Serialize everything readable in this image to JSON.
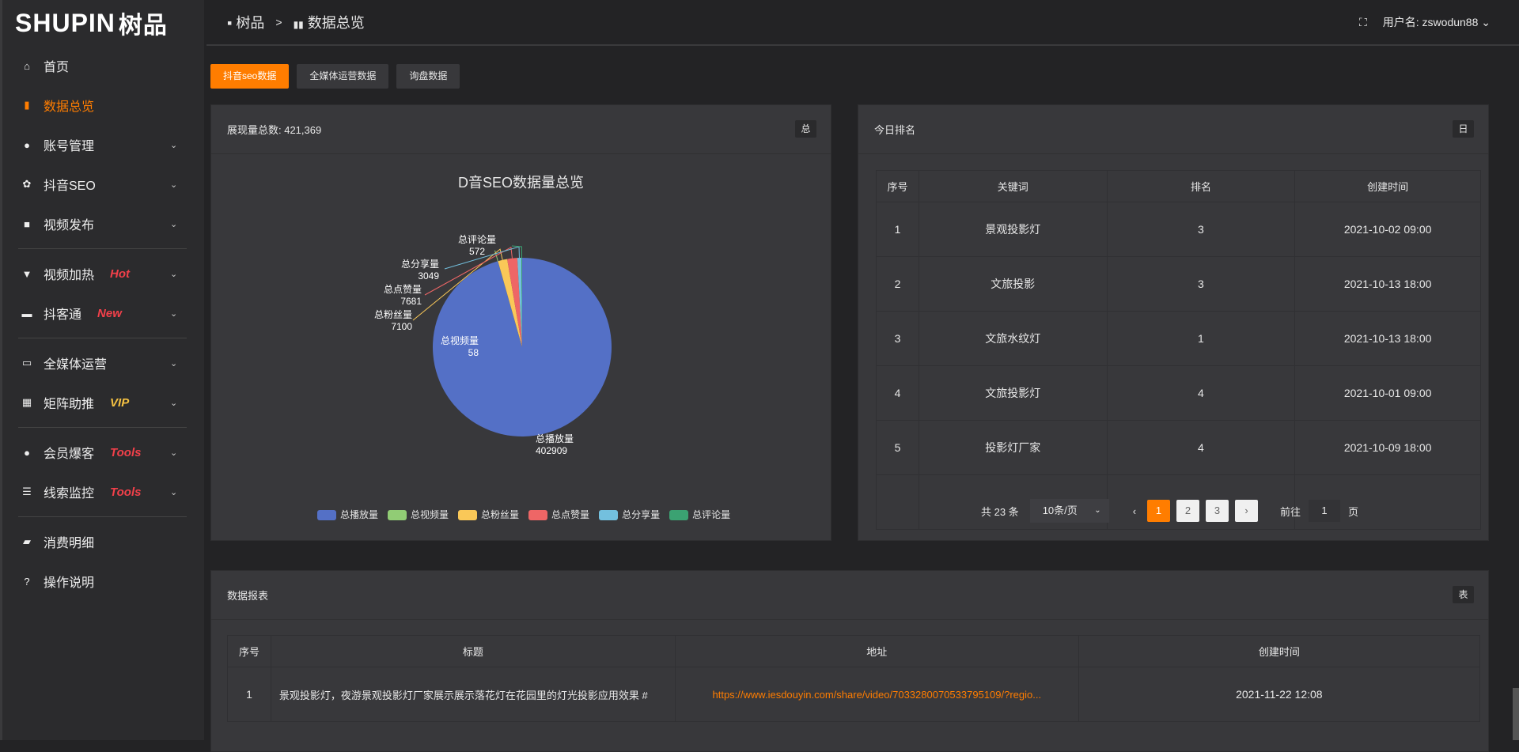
{
  "logo": {
    "text": "SHUPIN",
    "cn": "树品"
  },
  "sidebar": {
    "items": [
      {
        "icon": "home-icon",
        "label": "首页",
        "active": false,
        "chev": false
      },
      {
        "icon": "bar-chart-icon",
        "label": "数据总览",
        "active": true,
        "chev": false
      },
      {
        "icon": "user-icon",
        "label": "账号管理",
        "chev": true
      },
      {
        "icon": "gear-icon",
        "label": "抖音SEO",
        "chev": true
      },
      {
        "icon": "camera-icon",
        "label": "视频发布",
        "chev": true
      },
      {
        "icon": "flag-icon",
        "label": "视频加热",
        "tag": "Hot",
        "tagColor": "#f2404a",
        "chev": true
      },
      {
        "icon": "chat-icon",
        "label": "抖客通",
        "tag": "New",
        "tagColor": "#f2404a",
        "chev": true
      },
      {
        "icon": "monitor-icon",
        "label": "全媒体运营",
        "chev": true
      },
      {
        "icon": "grid-icon",
        "label": "矩阵助推",
        "tag": "VIP",
        "tagColor": "#f5c242",
        "chev": true
      },
      {
        "icon": "user-icon",
        "label": "会员爆客",
        "tag": "Tools",
        "tagColor": "#f2404a",
        "chev": true
      },
      {
        "icon": "sliders-icon",
        "label": "线索监控",
        "tag": "Tools",
        "tagColor": "#f2404a",
        "chev": true
      },
      {
        "icon": "wallet-icon",
        "label": "消费明细",
        "chev": false
      },
      {
        "icon": "help-icon",
        "label": "操作说明",
        "chev": false
      }
    ]
  },
  "header": {
    "breadcrumb": [
      "树品",
      "数据总览"
    ],
    "sep": ">",
    "username_label": "用户名: zswodun88"
  },
  "tabs": [
    {
      "label": "抖音seo数据",
      "active": true
    },
    {
      "label": "全媒体运营数据"
    },
    {
      "label": "询盘数据"
    }
  ],
  "pie_panel": {
    "title": "展现量总数: 421,369",
    "btn": "总"
  },
  "chart_data": {
    "type": "pie",
    "title": "D音SEO数据量总览",
    "legend_position": "bottom",
    "slices": [
      {
        "name": "总播放量",
        "value": 402909,
        "color": "#5470c6"
      },
      {
        "name": "总视频量",
        "value": 58,
        "color": "#91cc75"
      },
      {
        "name": "总粉丝量",
        "value": 7100,
        "color": "#fac858"
      },
      {
        "name": "总点赞量",
        "value": 7681,
        "color": "#ee6666"
      },
      {
        "name": "总分享量",
        "value": 3049,
        "color": "#73c0de"
      },
      {
        "name": "总评论量",
        "value": 572,
        "color": "#3ba272"
      }
    ]
  },
  "rank_panel": {
    "title": "今日排名",
    "btn": "日",
    "columns": [
      "序号",
      "关键词",
      "排名",
      "创建时间"
    ],
    "rows": [
      [
        "1",
        "景观投影灯",
        "3",
        "2021-10-02 09:00"
      ],
      [
        "2",
        "文旅投影",
        "3",
        "2021-10-13 18:00"
      ],
      [
        "3",
        "文旅水纹灯",
        "1",
        "2021-10-13 18:00"
      ],
      [
        "4",
        "文旅投影灯",
        "4",
        "2021-10-01 09:00"
      ],
      [
        "5",
        "投影灯厂家",
        "4",
        "2021-10-09 18:00"
      ]
    ],
    "pager": {
      "total": "共 23 条",
      "size": "10条/页",
      "pages": [
        "1",
        "2",
        "3"
      ],
      "current": "1",
      "goto_label": "前往",
      "goto_value": "1",
      "goto_suffix": "页"
    }
  },
  "report_panel": {
    "title": "数据报表",
    "btn": "表",
    "columns": [
      "序号",
      "标题",
      "地址",
      "创建时间"
    ],
    "rows": [
      [
        "1",
        "景观投影灯，夜游景观投影灯厂家展示展示落花灯在花园里的灯光投影应用效果 #",
        "https://www.iesdouyin.com/share/video/7033280070533795109/?regio...",
        "2021-11-22 12:08"
      ]
    ]
  },
  "colors": {
    "accent": "#ff7d00",
    "link": "#ff7d00"
  }
}
